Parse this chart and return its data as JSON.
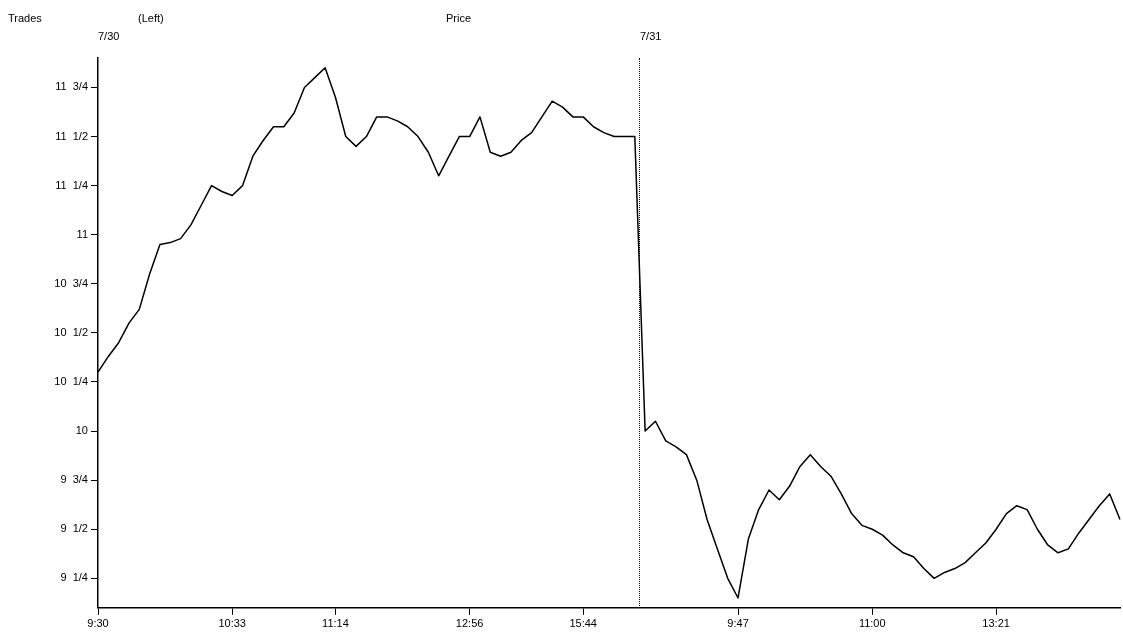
{
  "chart_data": {
    "type": "line",
    "title": "Price",
    "annotations": [
      "Trades",
      "(Left)",
      "7/30",
      "7/31"
    ],
    "categories": [
      "9:30",
      null,
      null,
      null,
      null,
      null,
      null,
      null,
      null,
      null,
      null,
      null,
      null,
      "10:33",
      null,
      null,
      null,
      null,
      null,
      null,
      null,
      null,
      null,
      "11:14",
      null,
      null,
      null,
      null,
      null,
      null,
      null,
      null,
      null,
      null,
      null,
      null,
      "12:56",
      null,
      null,
      null,
      null,
      null,
      null,
      null,
      null,
      null,
      null,
      "15:44",
      null,
      null,
      null,
      null,
      null,
      null,
      null,
      null,
      null,
      null,
      null,
      null,
      null,
      null,
      "9:47",
      null,
      null,
      null,
      null,
      null,
      null,
      null,
      null,
      null,
      null,
      null,
      null,
      "11:00",
      null,
      null,
      null,
      null,
      null,
      null,
      null,
      null,
      null,
      null,
      null,
      "13:21",
      null,
      null,
      null,
      null,
      null,
      null,
      null,
      null,
      null,
      null,
      null,
      null
    ],
    "series": [
      {
        "color": "#000000",
        "values": [
          10.3,
          10.38,
          10.45,
          10.55,
          10.62,
          10.8,
          10.95,
          10.96,
          10.98,
          11.05,
          11.15,
          11.25,
          11.22,
          11.2,
          11.25,
          11.4,
          11.48,
          11.55,
          11.55,
          11.62,
          11.75,
          11.8,
          11.85,
          11.7,
          11.5,
          11.45,
          11.5,
          11.6,
          11.6,
          11.58,
          11.55,
          11.5,
          11.42,
          11.3,
          11.4,
          11.5,
          11.5,
          11.6,
          11.42,
          11.4,
          11.42,
          11.48,
          11.52,
          11.6,
          11.68,
          11.65,
          11.6,
          11.6,
          11.55,
          11.52,
          11.5,
          11.5,
          11.5,
          10.0,
          10.05,
          9.95,
          9.92,
          9.88,
          9.75,
          9.55,
          9.4,
          9.25,
          9.15,
          9.45,
          9.6,
          9.7,
          9.65,
          9.72,
          9.82,
          9.88,
          9.82,
          9.77,
          9.68,
          9.58,
          9.52,
          9.5,
          9.47,
          9.42,
          9.38,
          9.36,
          9.3,
          9.25,
          9.28,
          9.3,
          9.33,
          9.38,
          9.43,
          9.5,
          9.58,
          9.62,
          9.6,
          9.5,
          9.42,
          9.38,
          9.4,
          9.48,
          9.55,
          9.62,
          9.68,
          9.55
        ]
      }
    ],
    "ylim": [
      9.1,
      11.9
    ],
    "yticks": [
      {
        "value": 9.25,
        "label": "9  1/4"
      },
      {
        "value": 9.5,
        "label": "9  1/2"
      },
      {
        "value": 9.75,
        "label": "9  3/4"
      },
      {
        "value": 10,
        "label": "10"
      },
      {
        "value": 10.25,
        "label": "10  1/4"
      },
      {
        "value": 10.5,
        "label": "10  1/2"
      },
      {
        "value": 10.75,
        "label": "10  3/4"
      },
      {
        "value": 11,
        "label": "11"
      },
      {
        "value": 11.25,
        "label": "11  1/4"
      },
      {
        "value": 11.5,
        "label": "11  1/2"
      },
      {
        "value": 11.75,
        "label": "11  3/4"
      }
    ],
    "grid": false,
    "legend": false,
    "marker": "none",
    "line_style": "solid"
  }
}
